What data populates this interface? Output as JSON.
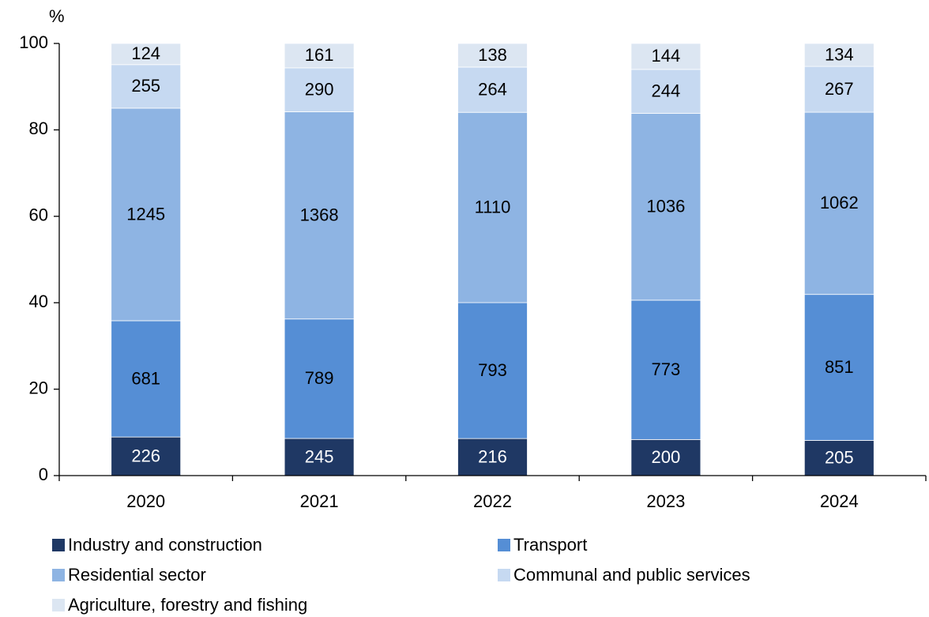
{
  "chart_data": {
    "type": "stacked_percent_bar",
    "percent": true,
    "y_axis_label": "%",
    "categories": [
      "2020",
      "2021",
      "2022",
      "2023",
      "2024"
    ],
    "series": [
      {
        "name": "Industry and construction",
        "color": "#1f3864",
        "label_color": "#ffffff",
        "values": [
          226,
          245,
          216,
          200,
          205
        ]
      },
      {
        "name": "Transport",
        "color": "#558ed5",
        "label_color": "#000000",
        "values": [
          681,
          789,
          793,
          773,
          851
        ]
      },
      {
        "name": "Residential sector",
        "color": "#8eb4e3",
        "label_color": "#000000",
        "values": [
          1245,
          1368,
          1110,
          1036,
          1062
        ]
      },
      {
        "name": "Communal and public services",
        "color": "#c6d9f1",
        "label_color": "#000000",
        "values": [
          255,
          290,
          264,
          244,
          267
        ]
      },
      {
        "name": "Agriculture, forestry and fishing",
        "color": "#dce6f2",
        "label_color": "#000000",
        "values": [
          124,
          161,
          138,
          144,
          134
        ]
      }
    ],
    "ylim": [
      0,
      100
    ],
    "yticks": [
      0,
      20,
      40,
      60,
      80,
      100
    ],
    "grid": false
  }
}
